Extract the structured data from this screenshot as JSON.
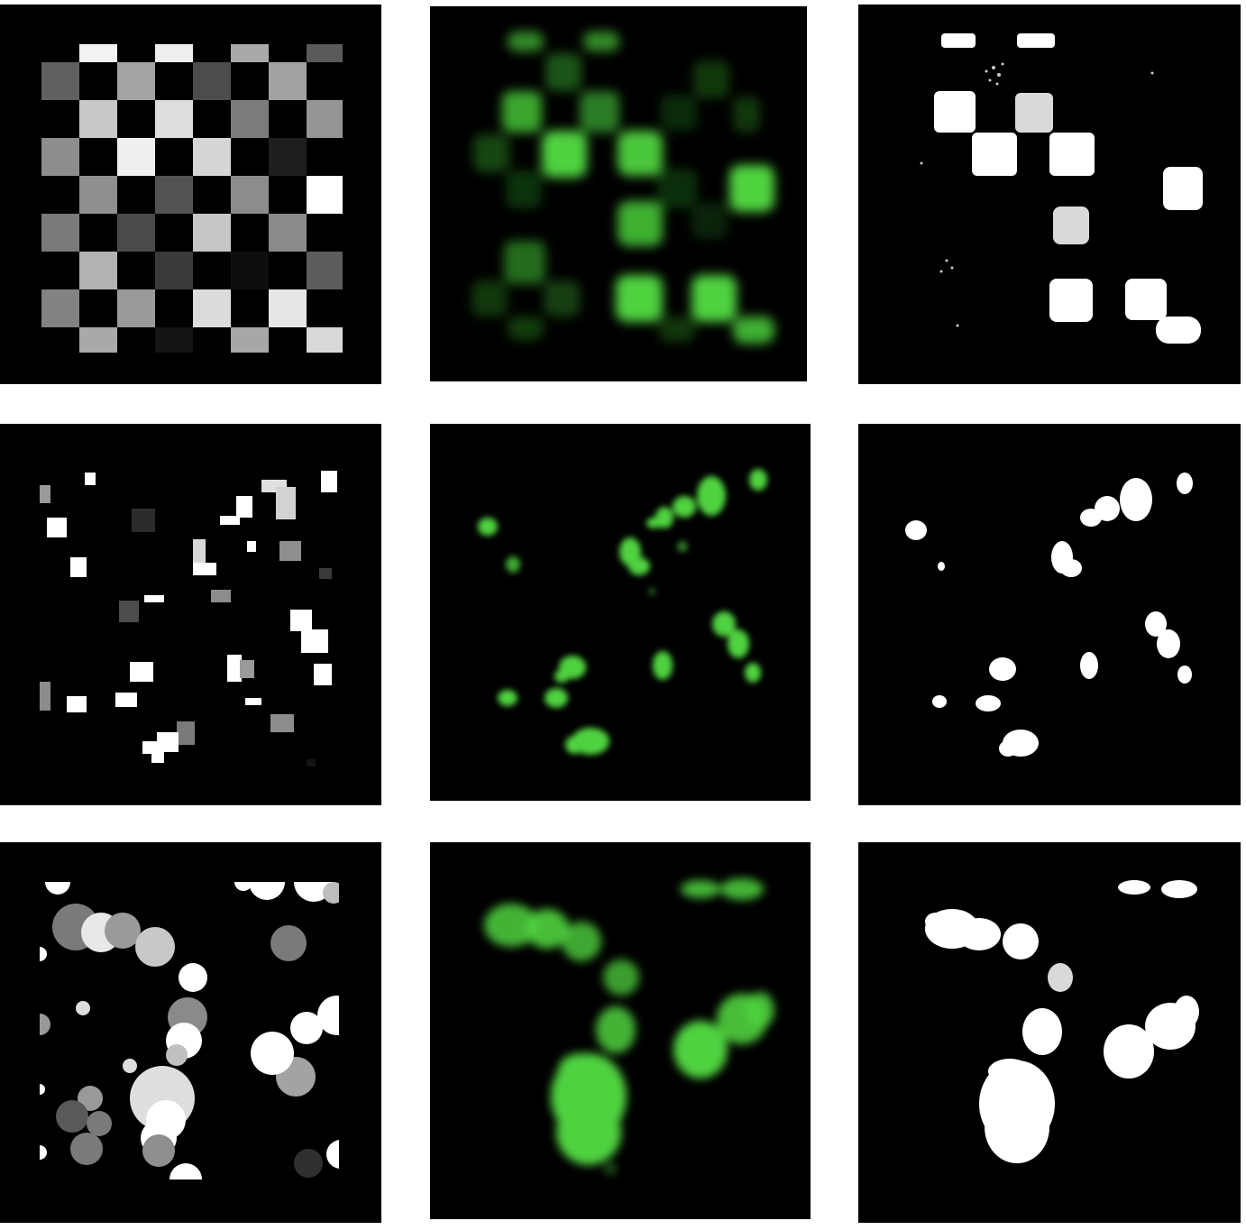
{
  "figure": {
    "colors": {
      "background": "#ffffff",
      "panel": "#000000",
      "fluorescence": "#4fd23f",
      "mask": "#ffffff"
    },
    "rows": [
      {
        "pattern": "checkerboard",
        "columns": [
          "synthetic-grayscale",
          "simulated-fluorescence",
          "binary-segmentation"
        ]
      },
      {
        "pattern": "scattered-squares",
        "columns": [
          "synthetic-grayscale",
          "simulated-fluorescence",
          "binary-segmentation"
        ]
      },
      {
        "pattern": "overlapping-circles",
        "columns": [
          "synthetic-grayscale",
          "simulated-fluorescence",
          "binary-segmentation"
        ]
      }
    ]
  }
}
